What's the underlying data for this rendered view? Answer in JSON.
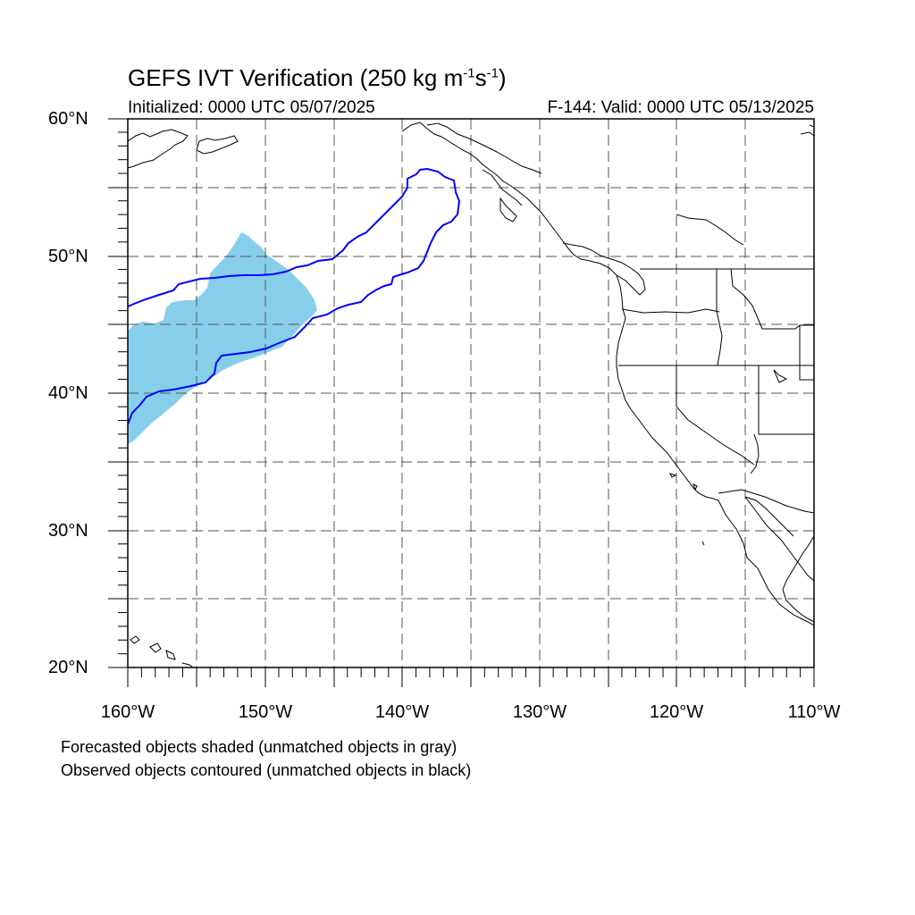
{
  "title": {
    "main": "GEFS IVT Verification (250 kg m",
    "exp1": "-1",
    "mid": "s",
    "exp2": "-1",
    "end": ")"
  },
  "subtitle_left": "Initialized: 0000 UTC 05/07/2025",
  "subtitle_right": "F-144: Valid: 0000 UTC 05/13/2025",
  "map_extent": {
    "lon_min": -160,
    "lon_max": -110,
    "lat_min": 20,
    "lat_max": 60
  },
  "lat_labels": [
    "60°N",
    "50°N",
    "40°N",
    "30°N",
    "20°N"
  ],
  "lon_labels": [
    "160°W",
    "150°W",
    "140°W",
    "130°W",
    "120°W",
    "110°W"
  ],
  "notes": [
    "Forecasted objects shaded (unmatched objects in gray)",
    "Observed objects contoured (unmatched objects in black)"
  ],
  "colors": {
    "forecast_fill": "#87ceeb",
    "observed_contour": "#0000ff",
    "coastline": "#000000",
    "grid": "#555555"
  }
}
